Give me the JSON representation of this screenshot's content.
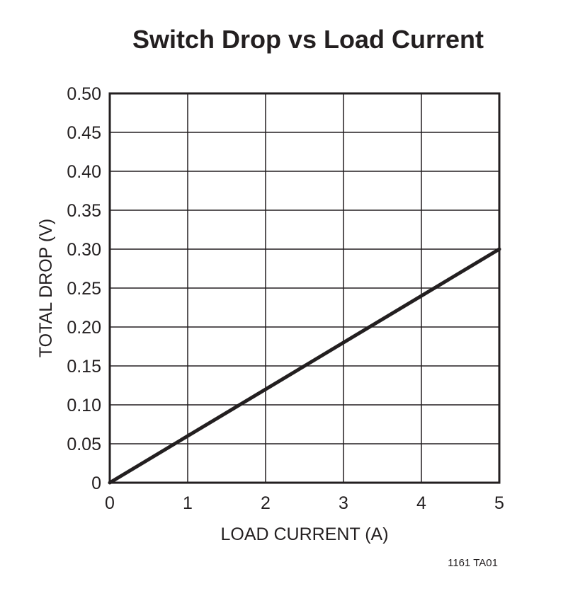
{
  "chart_data": {
    "type": "line",
    "title": "Switch Drop vs Load Current",
    "xlabel": "LOAD CURRENT (A)",
    "ylabel": "TOTAL DROP (V)",
    "xlim": [
      0,
      5
    ],
    "ylim": [
      0,
      0.5
    ],
    "x_ticks": [
      "0",
      "1",
      "2",
      "3",
      "4",
      "5"
    ],
    "y_ticks": [
      "0",
      "0.05",
      "0.10",
      "0.15",
      "0.20",
      "0.25",
      "0.30",
      "0.35",
      "0.40",
      "0.45",
      "0.50"
    ],
    "grid": true,
    "series": [
      {
        "x": [
          0,
          5
        ],
        "y": [
          0,
          0.3
        ]
      }
    ],
    "figure_code": "1161 TA01",
    "colors": {
      "ink": "#231f20",
      "background": "#ffffff"
    }
  }
}
